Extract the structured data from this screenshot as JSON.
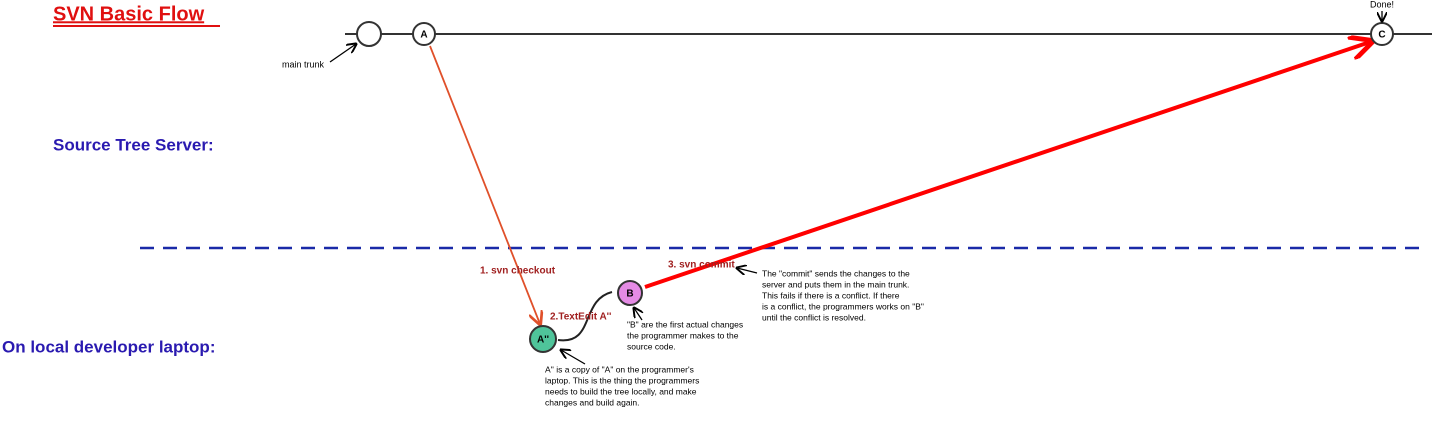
{
  "header": {
    "title": "SVN Basic Flow"
  },
  "zones": {
    "server": "Source Tree Server:",
    "local": "On local developer laptop:"
  },
  "labels": {
    "main_trunk": "main trunk",
    "done": "Done!"
  },
  "nodes": [
    {
      "label": "A"
    },
    {
      "label": "C"
    },
    {
      "label": "A''"
    },
    {
      "label": "B"
    }
  ],
  "steps": [
    "1. svn checkout",
    "2.TextEdit A''",
    "3. svn commit"
  ],
  "notes": {
    "commit": [
      "The \"commit\" sends the changes to the",
      "server and puts them in the main trunk.",
      "This fails if there is a conflict.  If there",
      "is a conflict, the programmers works on \"B\"",
      "until the conflict is resolved."
    ],
    "b": [
      "\"B\" are the first actual changes",
      "the programmer makes to the",
      "source code."
    ],
    "a2": [
      "A'' is a copy of \"A\" on the programmer's",
      "laptop.  This is the thing the programmers",
      "needs to build the tree locally, and make",
      "changes and build again."
    ]
  }
}
